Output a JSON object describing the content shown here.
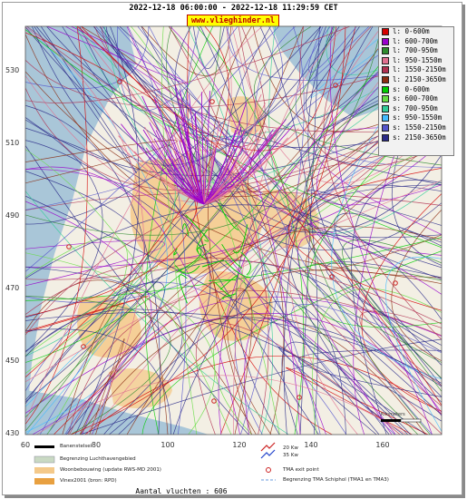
{
  "header": {
    "title": "2022-12-18 06:00:00 - 2022-12-18 11:29:59 CET",
    "brand": "www.vlieghinder.nl"
  },
  "legend": [
    {
      "label": "l: 0-600m",
      "color": "#d40000"
    },
    {
      "label": "l: 600-700m",
      "color": "#9900cc"
    },
    {
      "label": "l: 700-950m",
      "color": "#2e8b2e"
    },
    {
      "label": "l: 950-1550m",
      "color": "#e07090"
    },
    {
      "label": "l: 1550-2150m",
      "color": "#b03050"
    },
    {
      "label": "l: 2150-3650m",
      "color": "#8b2c12"
    },
    {
      "label": "s: 0-600m",
      "color": "#00cc00"
    },
    {
      "label": "s: 600-700m",
      "color": "#66dd44"
    },
    {
      "label": "s: 700-950m",
      "color": "#33cc99"
    },
    {
      "label": "s: 950-1550m",
      "color": "#44bbff"
    },
    {
      "label": "s: 1550-2150m",
      "color": "#5555cc"
    },
    {
      "label": "s: 2150-3650m",
      "color": "#2a2a88"
    }
  ],
  "axes": {
    "y_ticks": [
      "530",
      "510",
      "490",
      "470",
      "450",
      "430"
    ],
    "x_ticks": [
      "60",
      "80",
      "100",
      "120",
      "140",
      "160"
    ]
  },
  "map_key": {
    "left": [
      {
        "label": "Banenstelsel"
      },
      {
        "label": "Begrenzing Luchthavengebied"
      },
      {
        "label": "Woonbebouwing (update RWS-MD 2001)"
      },
      {
        "label": "Vinex2001 (bron: RPD)"
      }
    ],
    "right": [
      {
        "label": "20 Kw"
      },
      {
        "label": "35 Kw"
      },
      {
        "label": "TMA exit point"
      },
      {
        "label": "Begrenzing TMA Schiphol  (TMA1 en TMA3)"
      }
    ],
    "scale_label": "Kilometers"
  },
  "footer": {
    "count": "Aantal vluchten : 606"
  },
  "colors": {
    "sea": "#a9c6d8",
    "land": "#f3efe4",
    "urban": "#f4c98a",
    "airport": "#c9d9c3",
    "frame": "#9a9a9a"
  }
}
